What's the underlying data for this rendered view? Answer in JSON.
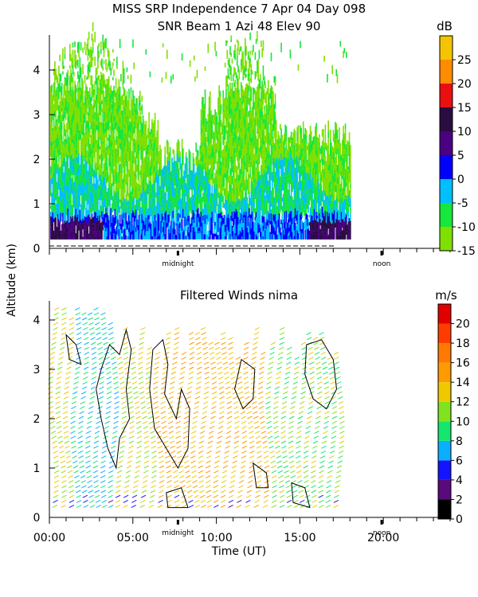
{
  "title_line1": "MISS SRP Independence   7 Apr 04 Day 098",
  "title_line2": "SNR Beam 1 Azi  48 Elev 90",
  "ylabel": "Altitude (km)",
  "xlabel": "Time (UT)",
  "chart_data": [
    {
      "type": "heatmap",
      "title": "SNR Beam 1 Azi  48 Elev 90",
      "ylabel": "Altitude (km)",
      "xlabel": "",
      "xlim": [
        0,
        24
      ],
      "ylim": [
        0,
        4.8
      ],
      "data_extent_x": [
        0,
        18
      ],
      "yticks": [
        0,
        1,
        2,
        3,
        4
      ],
      "marker_labels": [
        {
          "x": 7.7,
          "label": "midnight"
        },
        {
          "x": 19.9,
          "label": "noon"
        }
      ],
      "colorbar": {
        "unit": "dB",
        "ticks": [
          -15,
          -10,
          -5,
          0,
          5,
          10,
          15,
          20,
          25
        ],
        "bands": [
          {
            "range": [
              -15,
              -10
            ],
            "color": "#7fe000"
          },
          {
            "range": [
              -10,
              -5
            ],
            "color": "#17e63a"
          },
          {
            "range": [
              -5,
              0
            ],
            "color": "#00bfff"
          },
          {
            "range": [
              0,
              5
            ],
            "color": "#0000ff"
          },
          {
            "range": [
              5,
              10
            ],
            "color": "#4b0082"
          },
          {
            "range": [
              10,
              15
            ],
            "color": "#2a0d40"
          },
          {
            "range": [
              15,
              20
            ],
            "color": "#e81010"
          },
          {
            "range": [
              20,
              25
            ],
            "color": "#ff8c00"
          },
          {
            "range": [
              25,
              30
            ],
            "color": "#f5c400"
          }
        ]
      }
    },
    {
      "type": "heatmap",
      "title": "Filtered Winds nima",
      "xlabel": "Time (UT)",
      "ylabel": "Altitude (km)",
      "xlim": [
        0,
        24
      ],
      "ylim": [
        0,
        4.8
      ],
      "data_extent_x": [
        0,
        17.5
      ],
      "xticks": [
        {
          "value": 0,
          "label": "00:00"
        },
        {
          "value": 5,
          "label": "05:00"
        },
        {
          "value": 10,
          "label": "10:00"
        },
        {
          "value": 15,
          "label": "15:00"
        },
        {
          "value": 20,
          "label": "20:00"
        }
      ],
      "yticks": [
        0,
        1,
        2,
        3,
        4
      ],
      "marker_labels": [
        {
          "x": 7.7,
          "label": "midnight"
        },
        {
          "x": 19.9,
          "label": "noon"
        }
      ],
      "colorbar": {
        "unit": "m/s",
        "ticks": [
          0,
          2,
          4,
          6,
          8,
          10,
          12,
          14,
          16,
          18,
          20
        ],
        "bands": [
          {
            "range": [
              0,
              2
            ],
            "color": "#000000"
          },
          {
            "range": [
              2,
              4
            ],
            "color": "#5a0a7a"
          },
          {
            "range": [
              4,
              6
            ],
            "color": "#1414ff"
          },
          {
            "range": [
              6,
              8
            ],
            "color": "#0ab0ff"
          },
          {
            "range": [
              8,
              10
            ],
            "color": "#14e66e"
          },
          {
            "range": [
              10,
              12
            ],
            "color": "#7fe31f"
          },
          {
            "range": [
              12,
              14
            ],
            "color": "#f0c800"
          },
          {
            "range": [
              14,
              16
            ],
            "color": "#ff9a00"
          },
          {
            "range": [
              16,
              18
            ],
            "color": "#ff7a00"
          },
          {
            "range": [
              18,
              20
            ],
            "color": "#ff3c00"
          },
          {
            "range": [
              20,
              22
            ],
            "color": "#e00000"
          }
        ]
      }
    }
  ]
}
